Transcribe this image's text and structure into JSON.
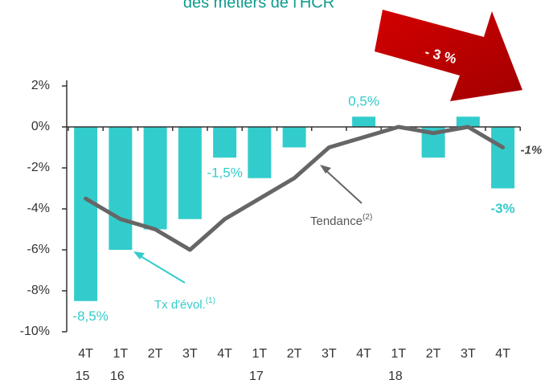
{
  "chart_data": {
    "type": "bar_line",
    "title": "des métiers de l'HCR",
    "categories": [
      "4T",
      "1T",
      "2T",
      "3T",
      "4T",
      "1T",
      "2T",
      "3T",
      "4T",
      "1T",
      "2T",
      "3T",
      "4T"
    ],
    "years": [
      "15",
      "16",
      null,
      null,
      null,
      "17",
      null,
      null,
      null,
      "18",
      null,
      null,
      null
    ],
    "series": [
      {
        "name": "Tx d'évol.",
        "name_sup": "(1)",
        "type": "bar",
        "color": "#33cccc",
        "values": [
          -8.5,
          -6,
          -5,
          -4.5,
          -1.5,
          -2.5,
          -1,
          0,
          0.5,
          0,
          -1.5,
          0.5,
          -3
        ],
        "value_labels": [
          "-8,5%",
          null,
          null,
          null,
          "-1,5%",
          null,
          null,
          null,
          "0,5%",
          null,
          null,
          null,
          "-3%"
        ]
      },
      {
        "name": "Tendance",
        "name_sup": "(2)",
        "type": "line",
        "color": "#666666",
        "values": [
          -3.5,
          -4.5,
          -5,
          -6,
          -4.5,
          -3.5,
          -2.5,
          -1,
          -0.5,
          0,
          -0.3,
          0,
          -1
        ],
        "value_labels": [
          null,
          null,
          null,
          null,
          null,
          null,
          null,
          null,
          null,
          null,
          null,
          null,
          "-1%"
        ]
      }
    ],
    "annotations": [
      {
        "text": "- 3 %"
      }
    ],
    "ylim": [
      -10,
      2
    ],
    "yticks": [
      {
        "value": 2,
        "label": "2%"
      },
      {
        "value": 0,
        "label": "0%"
      },
      {
        "value": -2,
        "label": "-2%"
      },
      {
        "value": -4,
        "label": "-4%"
      },
      {
        "value": -6,
        "label": "-6%"
      },
      {
        "value": -8,
        "label": "-8%"
      },
      {
        "value": -10,
        "label": "-10%"
      }
    ]
  }
}
